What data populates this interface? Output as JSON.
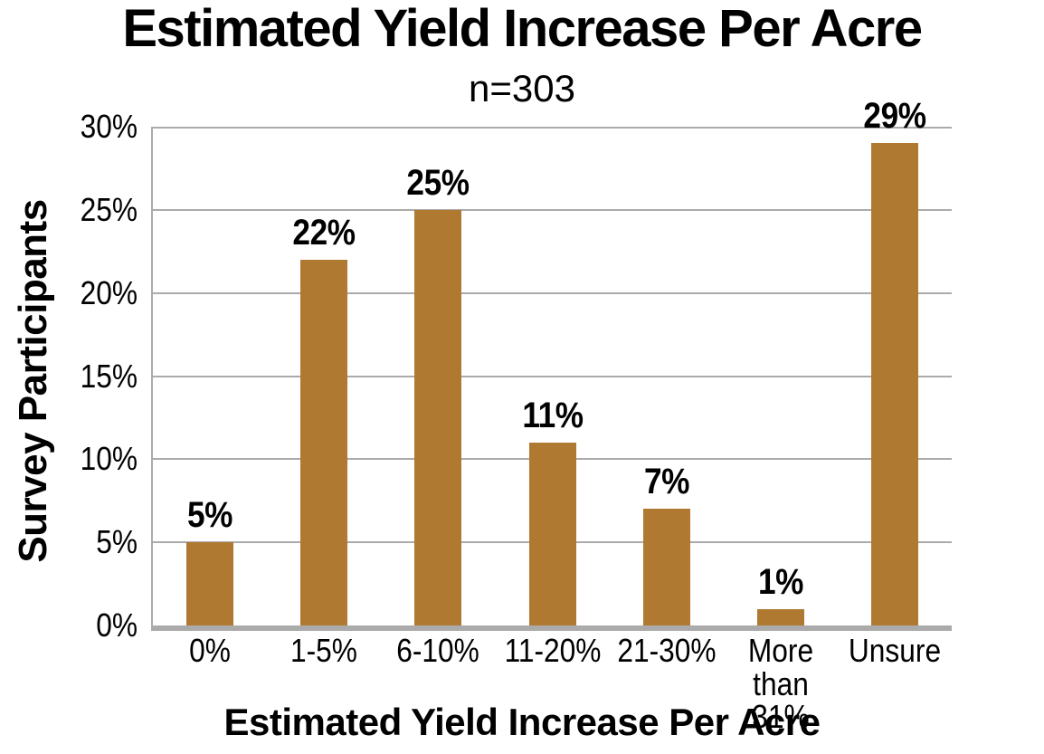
{
  "chart_data": {
    "type": "bar",
    "title": "Estimated Yield Increase Per Acre",
    "subtitle": "n=303",
    "categories": [
      "0%",
      "1-5%",
      "6-10%",
      "11-20%",
      "21-30%",
      "More than 31%",
      "Unsure"
    ],
    "values": [
      5,
      22,
      25,
      11,
      7,
      1,
      29
    ],
    "bar_labels": [
      "5%",
      "22%",
      "25%",
      "11%",
      "7%",
      "1%",
      "29%"
    ],
    "xlabel": "Estimated Yield Increase Per Acre",
    "ylabel": "Survey Participants",
    "ylim": [
      0,
      30
    ],
    "ytick_step": 5,
    "ytick_labels": [
      "0%",
      "5%",
      "10%",
      "15%",
      "20%",
      "25%",
      "30%"
    ],
    "grid": true,
    "legend_position": "none",
    "colors": {
      "bar": "#B07931",
      "gridline": "#ABABAB",
      "axis": "#ABABAB",
      "text": "#000000",
      "background": "#FFFFFF"
    }
  }
}
